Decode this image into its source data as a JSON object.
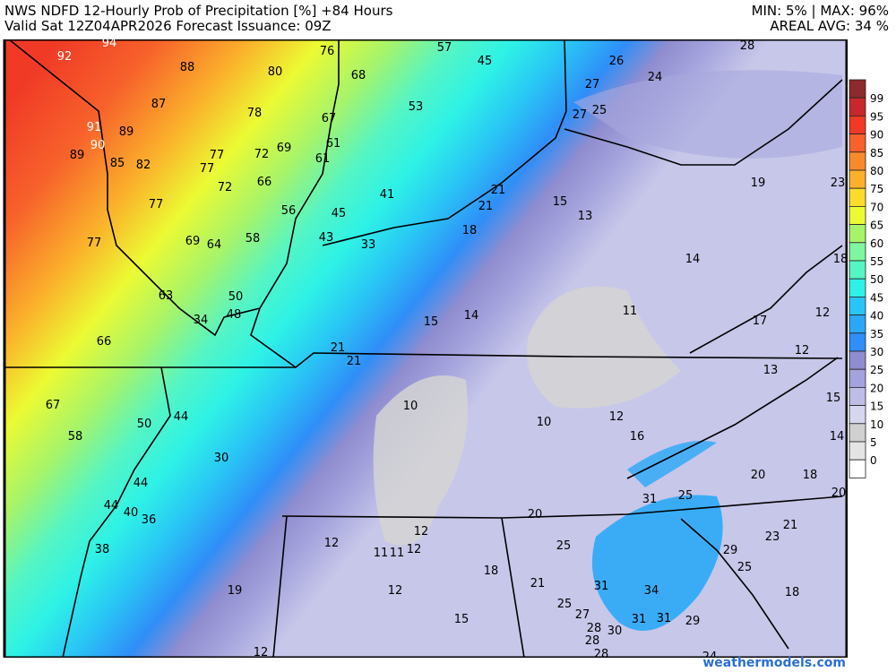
{
  "header": {
    "title": "NWS NDFD 12-Hourly Prob of Precipitation [%] +84 Hours",
    "valid": "Valid Sat 12Z04APR2026   Forecast Issuance: 09Z",
    "minmax": "MIN: 5% | MAX: 96%",
    "areal_avg": "AREAL AVG: 34 %"
  },
  "legend": {
    "levels": [
      "99",
      "95",
      "90",
      "85",
      "80",
      "75",
      "70",
      "65",
      "60",
      "55",
      "50",
      "45",
      "40",
      "35",
      "30",
      "25",
      "20",
      "15",
      "10",
      "5",
      "0"
    ],
    "colors": [
      "#8b2b2b",
      "#c8282b",
      "#f03a26",
      "#f7612b",
      "#f98a2c",
      "#fbb12b",
      "#fbdc2b",
      "#ecfa33",
      "#a6f46a",
      "#7ef79e",
      "#55f5c4",
      "#2ef2e6",
      "#29c6f5",
      "#2aa8f7",
      "#2f8ef8",
      "#8f8dcf",
      "#a4a3dd",
      "#bdbde6",
      "#d6d6ee",
      "#d0d0d0",
      "#e4e4e4",
      "#ffffff"
    ]
  },
  "map_labels": [
    92,
    94,
    88,
    76,
    57,
    45,
    28,
    26,
    24,
    27,
    27,
    25,
    80,
    68,
    87,
    53,
    78,
    67,
    91,
    89,
    90,
    89,
    85,
    82,
    77,
    72,
    69,
    61,
    77,
    61,
    66,
    72,
    56,
    45,
    41,
    21,
    21,
    15,
    13,
    19,
    23,
    77,
    18,
    43,
    33,
    69,
    64,
    58,
    77,
    14,
    18,
    63,
    50,
    48,
    34,
    15,
    14,
    11,
    17,
    12,
    66,
    21,
    21,
    12,
    13,
    15,
    10,
    10,
    12,
    16,
    14,
    67,
    58,
    50,
    44,
    30,
    20,
    18,
    20,
    44,
    31,
    25,
    44,
    40,
    36,
    20,
    21,
    23,
    12,
    38,
    12,
    11,
    11,
    12,
    25,
    29,
    25,
    18,
    21,
    31,
    34,
    18,
    19,
    12,
    25,
    27,
    28,
    30,
    31,
    31,
    29,
    15,
    28,
    28,
    12,
    24
  ],
  "credit": "weathermodels.com"
}
